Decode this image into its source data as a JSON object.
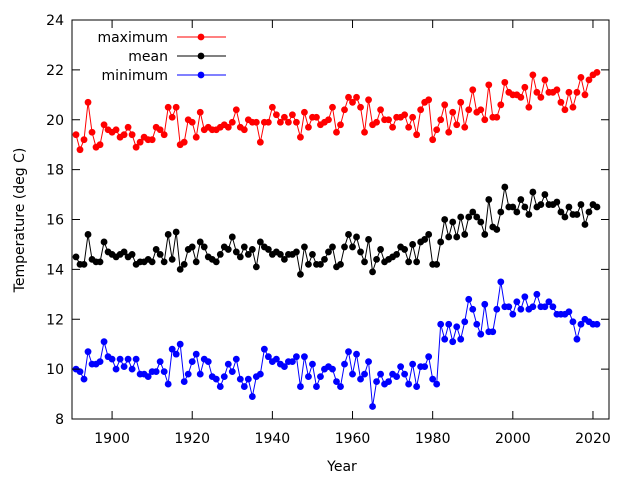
{
  "chart_data": {
    "type": "line",
    "xlabel": "Year",
    "ylabel": "Temperature (deg C)",
    "xlim": [
      1890,
      2024
    ],
    "ylim": [
      8,
      24
    ],
    "xticks": [
      1900,
      1920,
      1940,
      1960,
      1980,
      2000,
      2020
    ],
    "yticks": [
      8,
      10,
      12,
      14,
      16,
      18,
      20,
      22,
      24
    ],
    "grid": false,
    "legend_position": "top-left",
    "x": [
      1891,
      1892,
      1893,
      1894,
      1895,
      1896,
      1897,
      1898,
      1899,
      1900,
      1901,
      1902,
      1903,
      1904,
      1905,
      1906,
      1907,
      1908,
      1909,
      1910,
      1911,
      1912,
      1913,
      1914,
      1915,
      1916,
      1917,
      1918,
      1919,
      1920,
      1921,
      1922,
      1923,
      1924,
      1925,
      1926,
      1927,
      1928,
      1929,
      1930,
      1931,
      1932,
      1933,
      1934,
      1935,
      1936,
      1937,
      1938,
      1939,
      1940,
      1941,
      1942,
      1943,
      1944,
      1945,
      1946,
      1947,
      1948,
      1949,
      1950,
      1951,
      1952,
      1953,
      1954,
      1955,
      1956,
      1957,
      1958,
      1959,
      1960,
      1961,
      1962,
      1963,
      1964,
      1965,
      1966,
      1967,
      1968,
      1969,
      1970,
      1971,
      1972,
      1973,
      1974,
      1975,
      1976,
      1977,
      1978,
      1979,
      1980,
      1981,
      1982,
      1983,
      1984,
      1985,
      1986,
      1987,
      1988,
      1989,
      1990,
      1991,
      1992,
      1993,
      1994,
      1995,
      1996,
      1997,
      1998,
      1999,
      2000,
      2001,
      2002,
      2003,
      2004,
      2005,
      2006,
      2007,
      2008,
      2009,
      2010,
      2011,
      2012,
      2013,
      2014,
      2015,
      2016,
      2017,
      2018,
      2019,
      2020,
      2021
    ],
    "series": [
      {
        "name": "maximum",
        "color": "#ff0000",
        "values": [
          19.4,
          18.8,
          19.2,
          20.7,
          19.5,
          18.9,
          19.0,
          19.8,
          19.6,
          19.5,
          19.6,
          19.3,
          19.4,
          19.7,
          19.4,
          18.9,
          19.1,
          19.3,
          19.2,
          19.2,
          19.7,
          19.6,
          19.4,
          20.5,
          20.1,
          20.5,
          19.0,
          19.1,
          20.0,
          19.9,
          19.3,
          20.3,
          19.6,
          19.7,
          19.6,
          19.6,
          19.7,
          19.8,
          19.7,
          19.9,
          20.4,
          19.7,
          19.6,
          20.0,
          19.9,
          19.9,
          19.1,
          19.9,
          19.9,
          20.5,
          20.2,
          19.9,
          20.1,
          19.9,
          20.2,
          19.9,
          19.3,
          20.3,
          19.7,
          20.1,
          20.1,
          19.8,
          19.9,
          20.0,
          20.5,
          19.5,
          19.8,
          20.4,
          20.9,
          20.7,
          20.9,
          20.5,
          19.5,
          20.8,
          19.8,
          19.9,
          20.4,
          20.0,
          20.0,
          19.7,
          20.1,
          20.1,
          20.2,
          19.7,
          20.1,
          19.4,
          20.4,
          20.7,
          20.8,
          19.2,
          19.6,
          20.0,
          20.6,
          19.5,
          20.3,
          19.8,
          20.7,
          19.7,
          20.4,
          21.2,
          20.3,
          20.4,
          20.0,
          21.4,
          20.1,
          20.1,
          20.6,
          21.5,
          21.1,
          21.0,
          21.0,
          20.9,
          21.3,
          20.5,
          21.8,
          21.1,
          20.9,
          21.6,
          21.1,
          21.1,
          21.2,
          20.7,
          20.4,
          21.1,
          20.5,
          21.1,
          21.7,
          21.0,
          21.6,
          21.8,
          21.9
        ]
      },
      {
        "name": "mean",
        "color": "#000000",
        "values": [
          14.5,
          14.2,
          14.2,
          15.4,
          14.4,
          14.3,
          14.3,
          15.1,
          14.7,
          14.6,
          14.5,
          14.6,
          14.7,
          14.5,
          14.6,
          14.2,
          14.3,
          14.3,
          14.4,
          14.3,
          14.8,
          14.6,
          14.3,
          15.4,
          14.4,
          15.5,
          14.0,
          14.2,
          14.8,
          14.9,
          14.3,
          15.1,
          14.9,
          14.5,
          14.4,
          14.3,
          14.6,
          14.9,
          14.8,
          15.3,
          14.7,
          14.5,
          14.9,
          14.6,
          14.8,
          14.1,
          15.1,
          14.9,
          14.8,
          14.6,
          14.7,
          14.6,
          14.4,
          14.6,
          14.6,
          14.7,
          13.8,
          14.9,
          14.2,
          14.6,
          14.2,
          14.2,
          14.4,
          14.7,
          14.9,
          14.1,
          14.2,
          14.9,
          15.4,
          14.9,
          15.3,
          14.7,
          14.3,
          15.2,
          13.9,
          14.4,
          14.8,
          14.3,
          14.4,
          14.5,
          14.6,
          14.9,
          14.8,
          14.3,
          15.0,
          14.3,
          15.1,
          15.2,
          15.4,
          14.2,
          14.2,
          15.1,
          16.0,
          15.3,
          15.9,
          15.3,
          16.1,
          15.4,
          16.1,
          16.3,
          16.1,
          15.9,
          15.4,
          16.8,
          15.7,
          15.6,
          16.3,
          17.3,
          16.5,
          16.5,
          16.3,
          16.8,
          16.5,
          16.2,
          17.1,
          16.5,
          16.6,
          17.0,
          16.6,
          16.6,
          16.7,
          16.3,
          16.1,
          16.5,
          16.2,
          16.2,
          16.6,
          15.8,
          16.3,
          16.6,
          16.5
        ]
      },
      {
        "name": "minimum",
        "color": "#0000ff",
        "values": [
          10.0,
          9.9,
          9.6,
          10.7,
          10.2,
          10.2,
          10.3,
          11.1,
          10.5,
          10.4,
          10.0,
          10.4,
          10.1,
          10.4,
          10.0,
          10.4,
          9.8,
          9.8,
          9.7,
          9.9,
          9.9,
          10.3,
          9.9,
          9.4,
          10.8,
          10.6,
          11.0,
          9.5,
          9.8,
          10.3,
          10.6,
          9.8,
          10.4,
          10.3,
          9.7,
          9.6,
          9.3,
          9.7,
          10.2,
          9.9,
          10.4,
          9.6,
          9.3,
          9.6,
          8.9,
          9.7,
          9.8,
          10.8,
          10.5,
          10.3,
          10.4,
          10.2,
          10.1,
          10.3,
          10.3,
          10.5,
          9.3,
          10.5,
          9.7,
          10.2,
          9.3,
          9.7,
          10.0,
          10.1,
          10.0,
          9.5,
          9.3,
          10.2,
          10.7,
          9.8,
          10.6,
          9.6,
          9.8,
          10.3,
          8.5,
          9.5,
          9.8,
          9.4,
          9.5,
          9.8,
          9.7,
          10.1,
          9.8,
          9.4,
          10.2,
          9.3,
          10.1,
          10.1,
          10.5,
          9.6,
          9.4,
          11.8,
          11.2,
          11.8,
          11.1,
          11.7,
          11.2,
          11.9,
          12.8,
          12.4,
          11.8,
          11.4,
          12.6,
          11.5,
          11.5,
          12.4,
          13.5,
          12.5,
          12.5,
          12.2,
          12.7,
          12.4,
          12.9,
          12.4,
          12.5,
          13.0,
          12.5,
          12.5,
          12.7,
          12.5,
          12.2,
          12.2,
          12.2,
          12.3,
          11.9,
          11.2,
          11.8,
          12.0,
          11.9,
          11.8,
          11.8
        ]
      }
    ]
  }
}
